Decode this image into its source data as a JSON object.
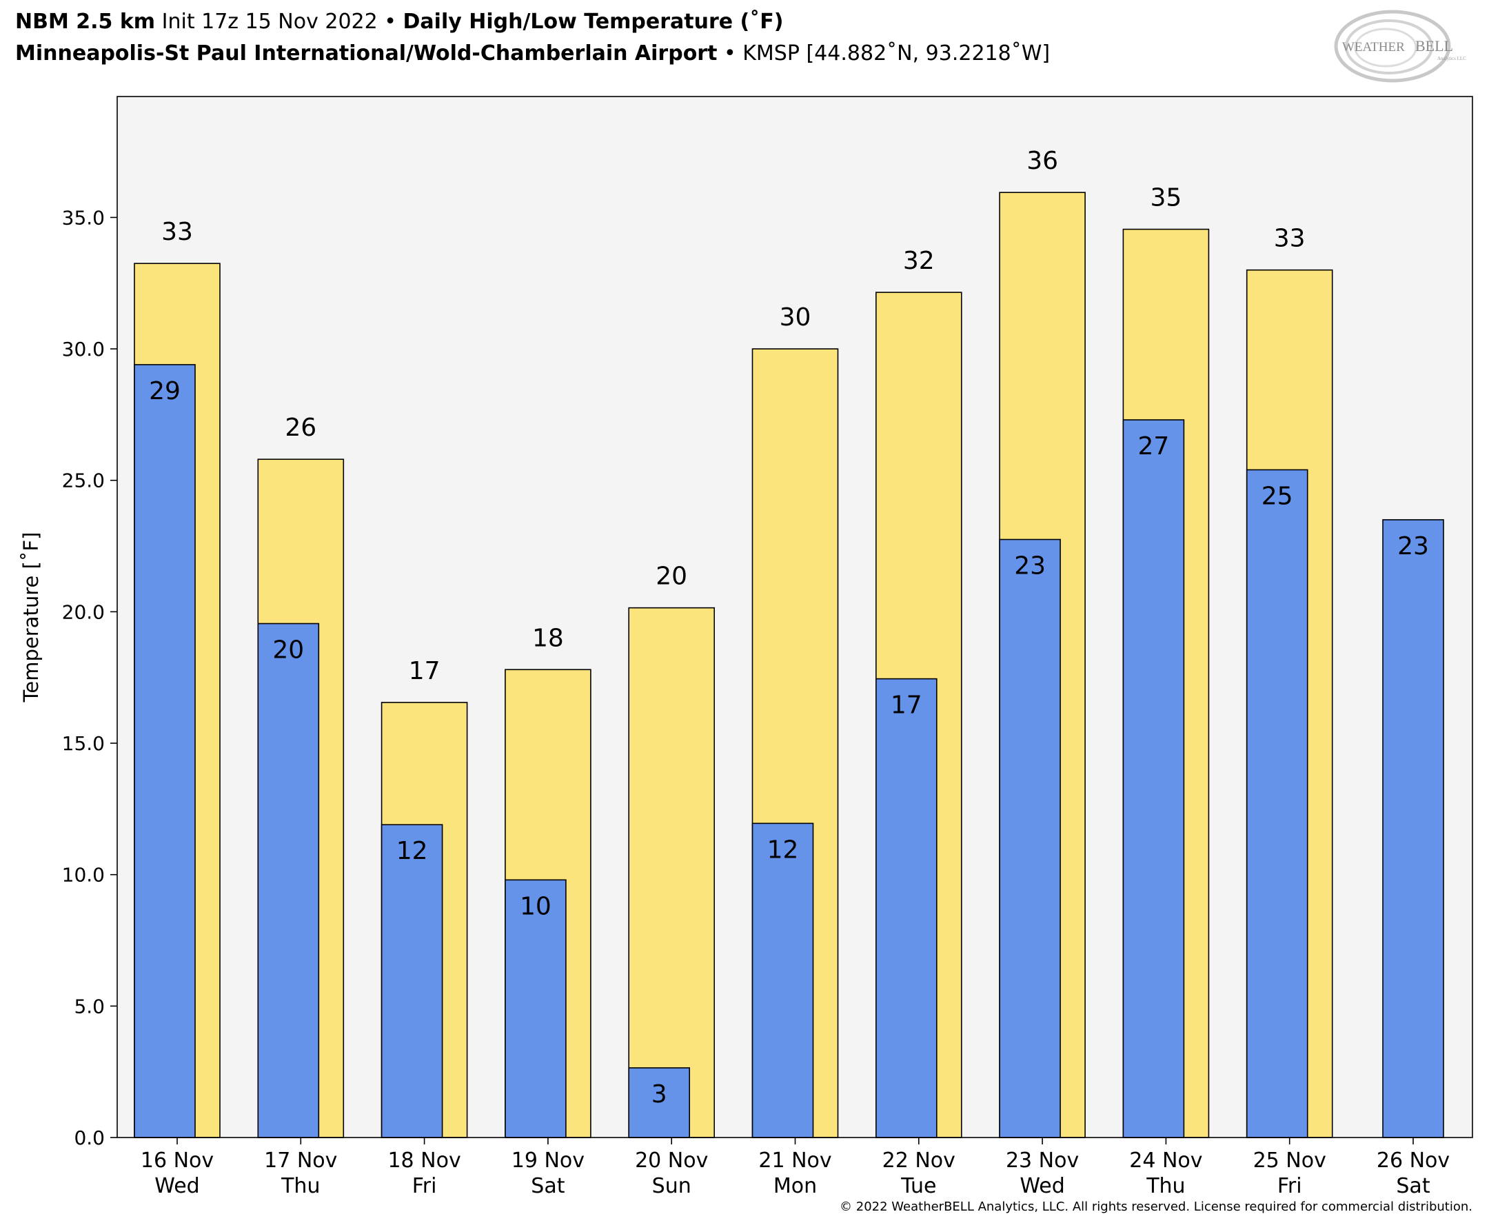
{
  "header": {
    "model": "NBM 2.5 km",
    "init": "Init 17z 15 Nov 2022",
    "bullet": "•",
    "product": "Daily High/Low Temperature (˚F)",
    "station_name": "Minneapolis-St Paul International/Wold-Chamberlain Airport",
    "station_code": "KMSP [44.882˚N, 93.2218˚W]"
  },
  "logo": {
    "text_left": "WEATHER",
    "text_right": "BELL",
    "sub": "Analytics LLC"
  },
  "copyright": "© 2022 WeatherBELL Analytics, LLC. All rights reserved. License required for commercial distribution.",
  "colors": {
    "high": "#fce47c",
    "low": "#6593ea",
    "plot_bg": "#f4f4f4"
  },
  "chart_data": {
    "type": "bar",
    "title": "Daily High/Low Temperature (˚F)",
    "ylabel": "Temperature [˚F]",
    "ylim": [
      0,
      39.6
    ],
    "yticks": [
      "0.0",
      "5.0",
      "10.0",
      "15.0",
      "20.0",
      "25.0",
      "30.0",
      "35.0"
    ],
    "categories": [
      [
        "16 Nov",
        "Wed"
      ],
      [
        "17 Nov",
        "Thu"
      ],
      [
        "18 Nov",
        "Fri"
      ],
      [
        "19 Nov",
        "Sat"
      ],
      [
        "20 Nov",
        "Sun"
      ],
      [
        "21 Nov",
        "Mon"
      ],
      [
        "22 Nov",
        "Tue"
      ],
      [
        "23 Nov",
        "Wed"
      ],
      [
        "24 Nov",
        "Thu"
      ],
      [
        "25 Nov",
        "Fri"
      ],
      [
        "26 Nov",
        "Sat"
      ]
    ],
    "series": [
      {
        "key": "high",
        "values": [
          33.25,
          25.8,
          16.55,
          17.8,
          20.15,
          30.0,
          32.15,
          35.95,
          34.55,
          33.0,
          null
        ],
        "labels": [
          "33",
          "26",
          "17",
          "18",
          "20",
          "30",
          "32",
          "36",
          "35",
          "33",
          ""
        ]
      },
      {
        "key": "low",
        "values": [
          29.4,
          19.55,
          11.9,
          9.8,
          2.65,
          11.95,
          17.45,
          22.75,
          27.3,
          25.4,
          23.5
        ],
        "labels": [
          "29",
          "20",
          "12",
          "10",
          "3",
          "12",
          "17",
          "23",
          "27",
          "25",
          "23"
        ]
      }
    ]
  }
}
